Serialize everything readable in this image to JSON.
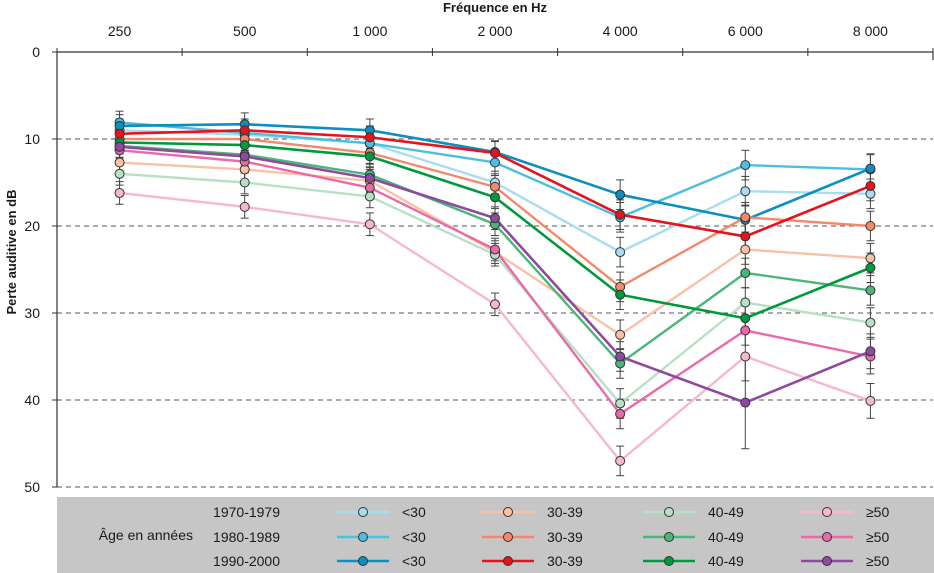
{
  "chart_data": {
    "type": "line",
    "title": "",
    "xlabel": "Fréquence en Hz",
    "ylabel": "Perte auditive en dB",
    "x_position": "top",
    "y_inverted": true,
    "ylim": [
      0,
      50
    ],
    "yticks": [
      0,
      10,
      20,
      30,
      40,
      50
    ],
    "gridlines_y": [
      10,
      20,
      30,
      40,
      50
    ],
    "grid": "dashed horizontal",
    "categories": [
      "250",
      "500",
      "1 000",
      "2 000",
      "4 000",
      "6 000",
      "8 000"
    ],
    "legend": {
      "placement": "bottom",
      "title": "Âge en années",
      "row_labels": [
        "1970-1979",
        "1980-1989",
        "1990-2000"
      ],
      "column_labels": [
        "<30",
        "30-39",
        "40-49",
        "≥50"
      ]
    },
    "series": [
      {
        "name": "<30 1970-1979",
        "age": "<30",
        "period": "1970-1979",
        "color": "#a8dcef",
        "values": [
          9.0,
          9.5,
          10.5,
          15.0,
          23.0,
          16.0,
          16.3
        ]
      },
      {
        "name": "<30 1980-1989",
        "age": "<30",
        "period": "1980-1989",
        "color": "#4dbde0",
        "values": [
          8.1,
          9.3,
          10.5,
          12.7,
          19.0,
          13.0,
          13.5
        ]
      },
      {
        "name": "<30 1990-2000",
        "age": "<30",
        "period": "1990-2000",
        "color": "#0a8fc0",
        "values": [
          8.5,
          8.3,
          9.0,
          11.5,
          16.4,
          19.3,
          13.4
        ]
      },
      {
        "name": "30-39 1970-1979",
        "age": "30-39",
        "period": "1970-1979",
        "color": "#f9c2a6",
        "values": [
          12.7,
          13.5,
          14.8,
          23.0,
          32.5,
          22.7,
          23.7
        ]
      },
      {
        "name": "30-39 1980-1989",
        "age": "30-39",
        "period": "1980-1989",
        "color": "#f4896a",
        "values": [
          10.0,
          10.0,
          11.6,
          15.5,
          27.0,
          19.0,
          20.0
        ]
      },
      {
        "name": "30-39 1990-2000",
        "age": "30-39",
        "period": "1990-2000",
        "color": "#e5141c",
        "values": [
          9.4,
          9.0,
          9.8,
          11.6,
          18.7,
          21.2,
          15.4
        ]
      },
      {
        "name": "40-49 1970-1979",
        "age": "40-49",
        "period": "1970-1979",
        "color": "#b8e0c4",
        "values": [
          14.0,
          15.0,
          16.6,
          23.3,
          40.4,
          28.8,
          31.1
        ]
      },
      {
        "name": "40-49 1980-1989",
        "age": "40-49",
        "period": "1980-1989",
        "color": "#4bb57a",
        "values": [
          10.8,
          11.8,
          14.1,
          19.8,
          35.8,
          25.4,
          27.4
        ]
      },
      {
        "name": "40-49 1990-2000",
        "age": "40-49",
        "period": "1990-2000",
        "color": "#009a3e",
        "values": [
          10.4,
          10.7,
          12.0,
          16.7,
          27.9,
          30.6,
          24.8
        ]
      },
      {
        "name": "≥50 1970-1979",
        "age": "≥50",
        "period": "1970-1979",
        "color": "#f6b7d3",
        "values": [
          16.2,
          17.8,
          19.8,
          29.0,
          47.0,
          35.0,
          40.1
        ]
      },
      {
        "name": "≥50 1980-1989",
        "age": "≥50",
        "period": "1980-1989",
        "color": "#ea6aa8",
        "values": [
          11.3,
          12.6,
          15.6,
          22.7,
          41.6,
          32.0,
          35.0
        ]
      },
      {
        "name": "≥50 1990-2000",
        "age": "≥50",
        "period": "1990-2000",
        "color": "#8e4aa0",
        "values": [
          10.9,
          12.0,
          14.5,
          19.1,
          35.0,
          40.3,
          34.4
        ]
      }
    ],
    "error_bars": "±~1.5 dB typical; larger at 6 000 Hz (≥50 1990-2000 up to ~±5 dB)"
  },
  "legend_colors": {
    "background": "#c6c6c6",
    "marker_outline": "#333333"
  }
}
